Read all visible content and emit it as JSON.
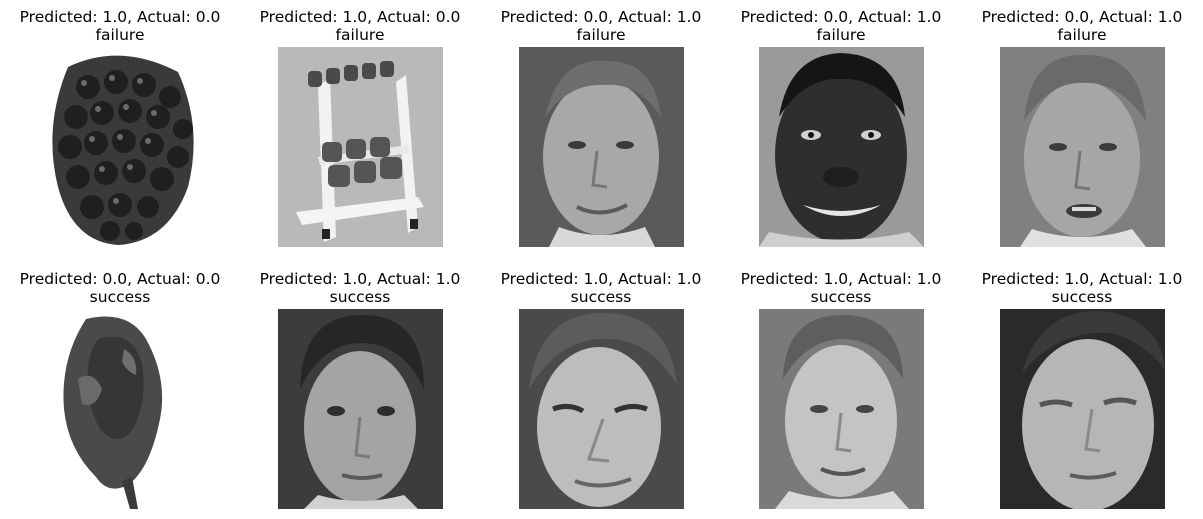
{
  "figure": {
    "panels": [
      {
        "title_line1": "Predicted: 1.0, Actual: 0.0",
        "title_line2": "failure",
        "image": "blackberry-photo"
      },
      {
        "title_line1": "Predicted: 1.0, Actual: 0.0",
        "title_line2": "failure",
        "image": "dumbbell-rack-photo"
      },
      {
        "title_line1": "Predicted: 0.0, Actual: 1.0",
        "title_line2": "failure",
        "image": "face-photo"
      },
      {
        "title_line1": "Predicted: 0.0, Actual: 1.0",
        "title_line2": "failure",
        "image": "face-photo"
      },
      {
        "title_line1": "Predicted: 0.0, Actual: 1.0",
        "title_line2": "failure",
        "image": "face-photo"
      },
      {
        "title_line1": "Predicted: 0.0, Actual: 0.0",
        "title_line2": "success",
        "image": "fruit-photo"
      },
      {
        "title_line1": "Predicted: 1.0, Actual: 1.0",
        "title_line2": "success",
        "image": "face-photo"
      },
      {
        "title_line1": "Predicted: 1.0, Actual: 1.0",
        "title_line2": "success",
        "image": "face-photo"
      },
      {
        "title_line1": "Predicted: 1.0, Actual: 1.0",
        "title_line2": "success",
        "image": "face-photo"
      },
      {
        "title_line1": "Predicted: 1.0, Actual: 1.0",
        "title_line2": "success",
        "image": "face-photo"
      }
    ]
  }
}
